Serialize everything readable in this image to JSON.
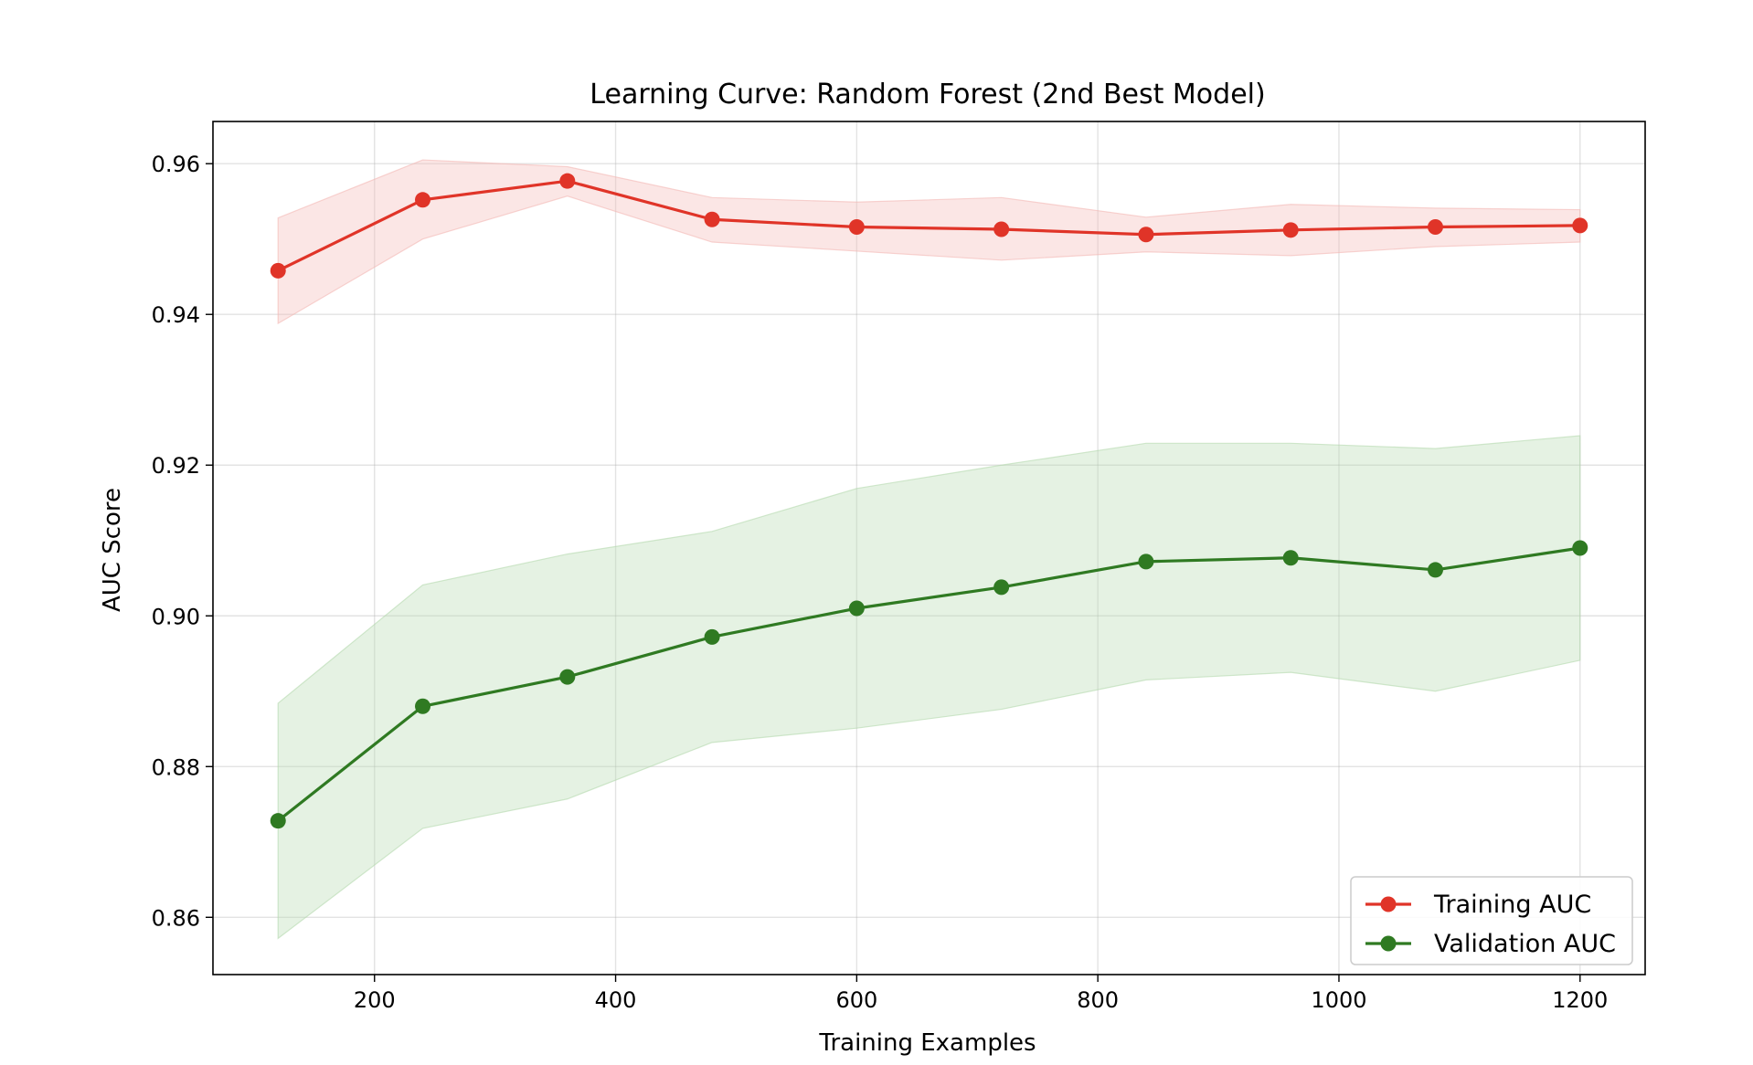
{
  "chart_data": {
    "type": "line",
    "title": "Learning Curve: Random Forest (2nd Best Model)",
    "xlabel": "Training Examples",
    "ylabel": "AUC Score",
    "xlim": [
      66,
      1254
    ],
    "ylim": [
      0.8524,
      0.9656
    ],
    "xticks": [
      200,
      400,
      600,
      800,
      1000,
      1200
    ],
    "yticks": [
      0.86,
      0.88,
      0.9,
      0.92,
      0.94,
      0.96
    ],
    "xtick_labels": [
      "200",
      "400",
      "600",
      "800",
      "1000",
      "1200"
    ],
    "ytick_labels": [
      "0.86",
      "0.88",
      "0.90",
      "0.92",
      "0.94",
      "0.96"
    ],
    "grid": true,
    "legend_position": "lower-right",
    "x": [
      120,
      240,
      360,
      480,
      600,
      720,
      840,
      960,
      1080,
      1200
    ],
    "series": [
      {
        "name": "Training AUC",
        "color": "#e03428",
        "band_color": "#f4b8b4",
        "values": [
          0.9458,
          0.9552,
          0.9577,
          0.9526,
          0.9516,
          0.9513,
          0.9506,
          0.9512,
          0.9516,
          0.9518
        ],
        "lower": [
          0.9388,
          0.95,
          0.9557,
          0.9496,
          0.9484,
          0.9472,
          0.9483,
          0.9478,
          0.949,
          0.9496
        ],
        "upper": [
          0.9528,
          0.9605,
          0.9596,
          0.9555,
          0.9549,
          0.9555,
          0.9529,
          0.9546,
          0.9541,
          0.9539
        ]
      },
      {
        "name": "Validation AUC",
        "color": "#2f7a22",
        "band_color": "#b4d9ae",
        "values": [
          0.8728,
          0.888,
          0.8919,
          0.8972,
          0.901,
          0.9038,
          0.9072,
          0.9077,
          0.9061,
          0.909
        ],
        "lower": [
          0.8572,
          0.8718,
          0.8757,
          0.8832,
          0.8851,
          0.8876,
          0.8915,
          0.8925,
          0.89,
          0.8941
        ],
        "upper": [
          0.8884,
          0.9041,
          0.9082,
          0.9112,
          0.9169,
          0.92,
          0.9229,
          0.9229,
          0.9222,
          0.9239
        ]
      }
    ]
  }
}
